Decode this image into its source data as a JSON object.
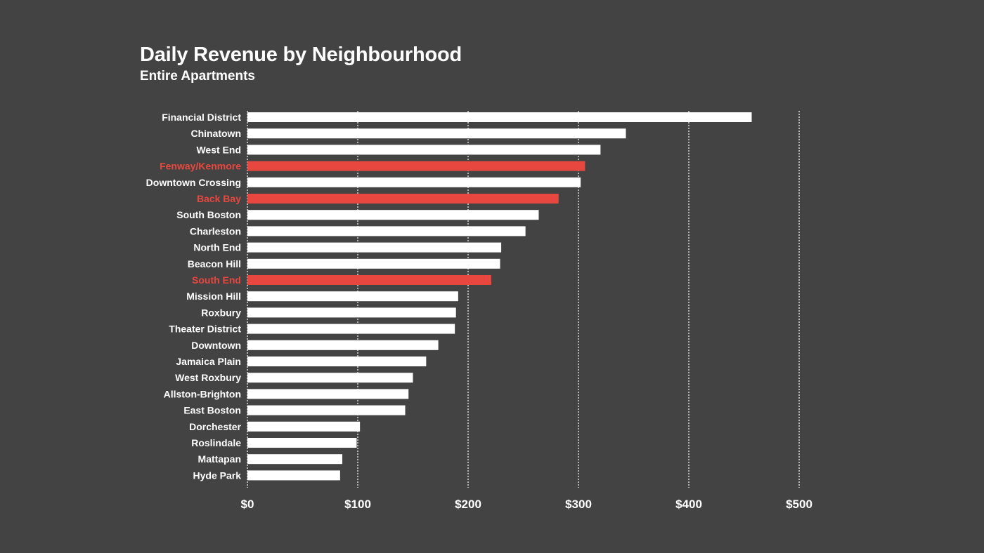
{
  "chart_data": {
    "type": "bar",
    "orientation": "horizontal",
    "title": "Daily Revenue by Neighbourhood",
    "subtitle": "Entire Apartments",
    "categories": [
      "Financial District",
      "Chinatown",
      "West End",
      "Fenway/Kenmore",
      "Downtown Crossing",
      "Back Bay",
      "South Boston",
      "Charleston",
      "North End",
      "Beacon Hill",
      "South End",
      "Mission Hill",
      "Roxbury",
      "Theater District",
      "Downtown",
      "Jamaica Plain",
      "West Roxbury",
      "Allston-Brighton",
      "East Boston",
      "Dorchester",
      "Roslindale",
      "Mattapan",
      "Hyde Park"
    ],
    "values": [
      457,
      343,
      320,
      306,
      302,
      282,
      264,
      252,
      230,
      229,
      221,
      191,
      189,
      188,
      173,
      162,
      150,
      146,
      143,
      102,
      99,
      86,
      84
    ],
    "highlighted": [
      "Fenway/Kenmore",
      "Back Bay",
      "South End"
    ],
    "xlim": [
      0,
      500
    ],
    "xticks": [
      0,
      100,
      200,
      300,
      400,
      500
    ],
    "xtick_labels": [
      "$0",
      "$100",
      "$200",
      "$300",
      "$400",
      "$500"
    ],
    "xlabel": "",
    "ylabel": "",
    "grid": "vertical dotted",
    "legend": "none",
    "colors": {
      "background": "#434343",
      "bar": "#ffffff",
      "highlight": "#e8473f",
      "text": "#ffffff",
      "grid": "#ffffff"
    }
  }
}
